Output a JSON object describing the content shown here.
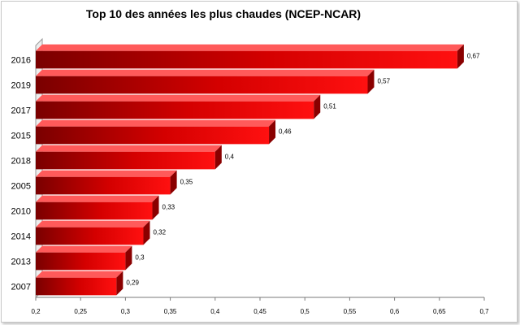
{
  "chart_data": {
    "type": "bar",
    "orientation": "horizontal",
    "title": "Top 10 des années les plus chaudes (NCEP-NCAR)",
    "categories": [
      "2016",
      "2019",
      "2017",
      "2015",
      "2018",
      "2005",
      "2010",
      "2014",
      "2013",
      "2007"
    ],
    "values": [
      0.67,
      0.57,
      0.51,
      0.46,
      0.4,
      0.35,
      0.33,
      0.32,
      0.3,
      0.29
    ],
    "data_labels": [
      "0,67",
      "0,57",
      "0,51",
      "0,46",
      "0,4",
      "0,35",
      "0,33",
      "0,32",
      "0,3",
      "0,29"
    ],
    "x_ticks": [
      "0,2",
      "0,25",
      "0,3",
      "0,35",
      "0,4",
      "0,45",
      "0,5",
      "0,55",
      "0,6",
      "0,65",
      "0,7"
    ],
    "xlim": [
      0.2,
      0.7
    ],
    "grid": false,
    "legend": "none",
    "bar_color": "#e80000",
    "bar_color_dark": "#8a0000",
    "bar_top_color": "#ff5a5a"
  }
}
